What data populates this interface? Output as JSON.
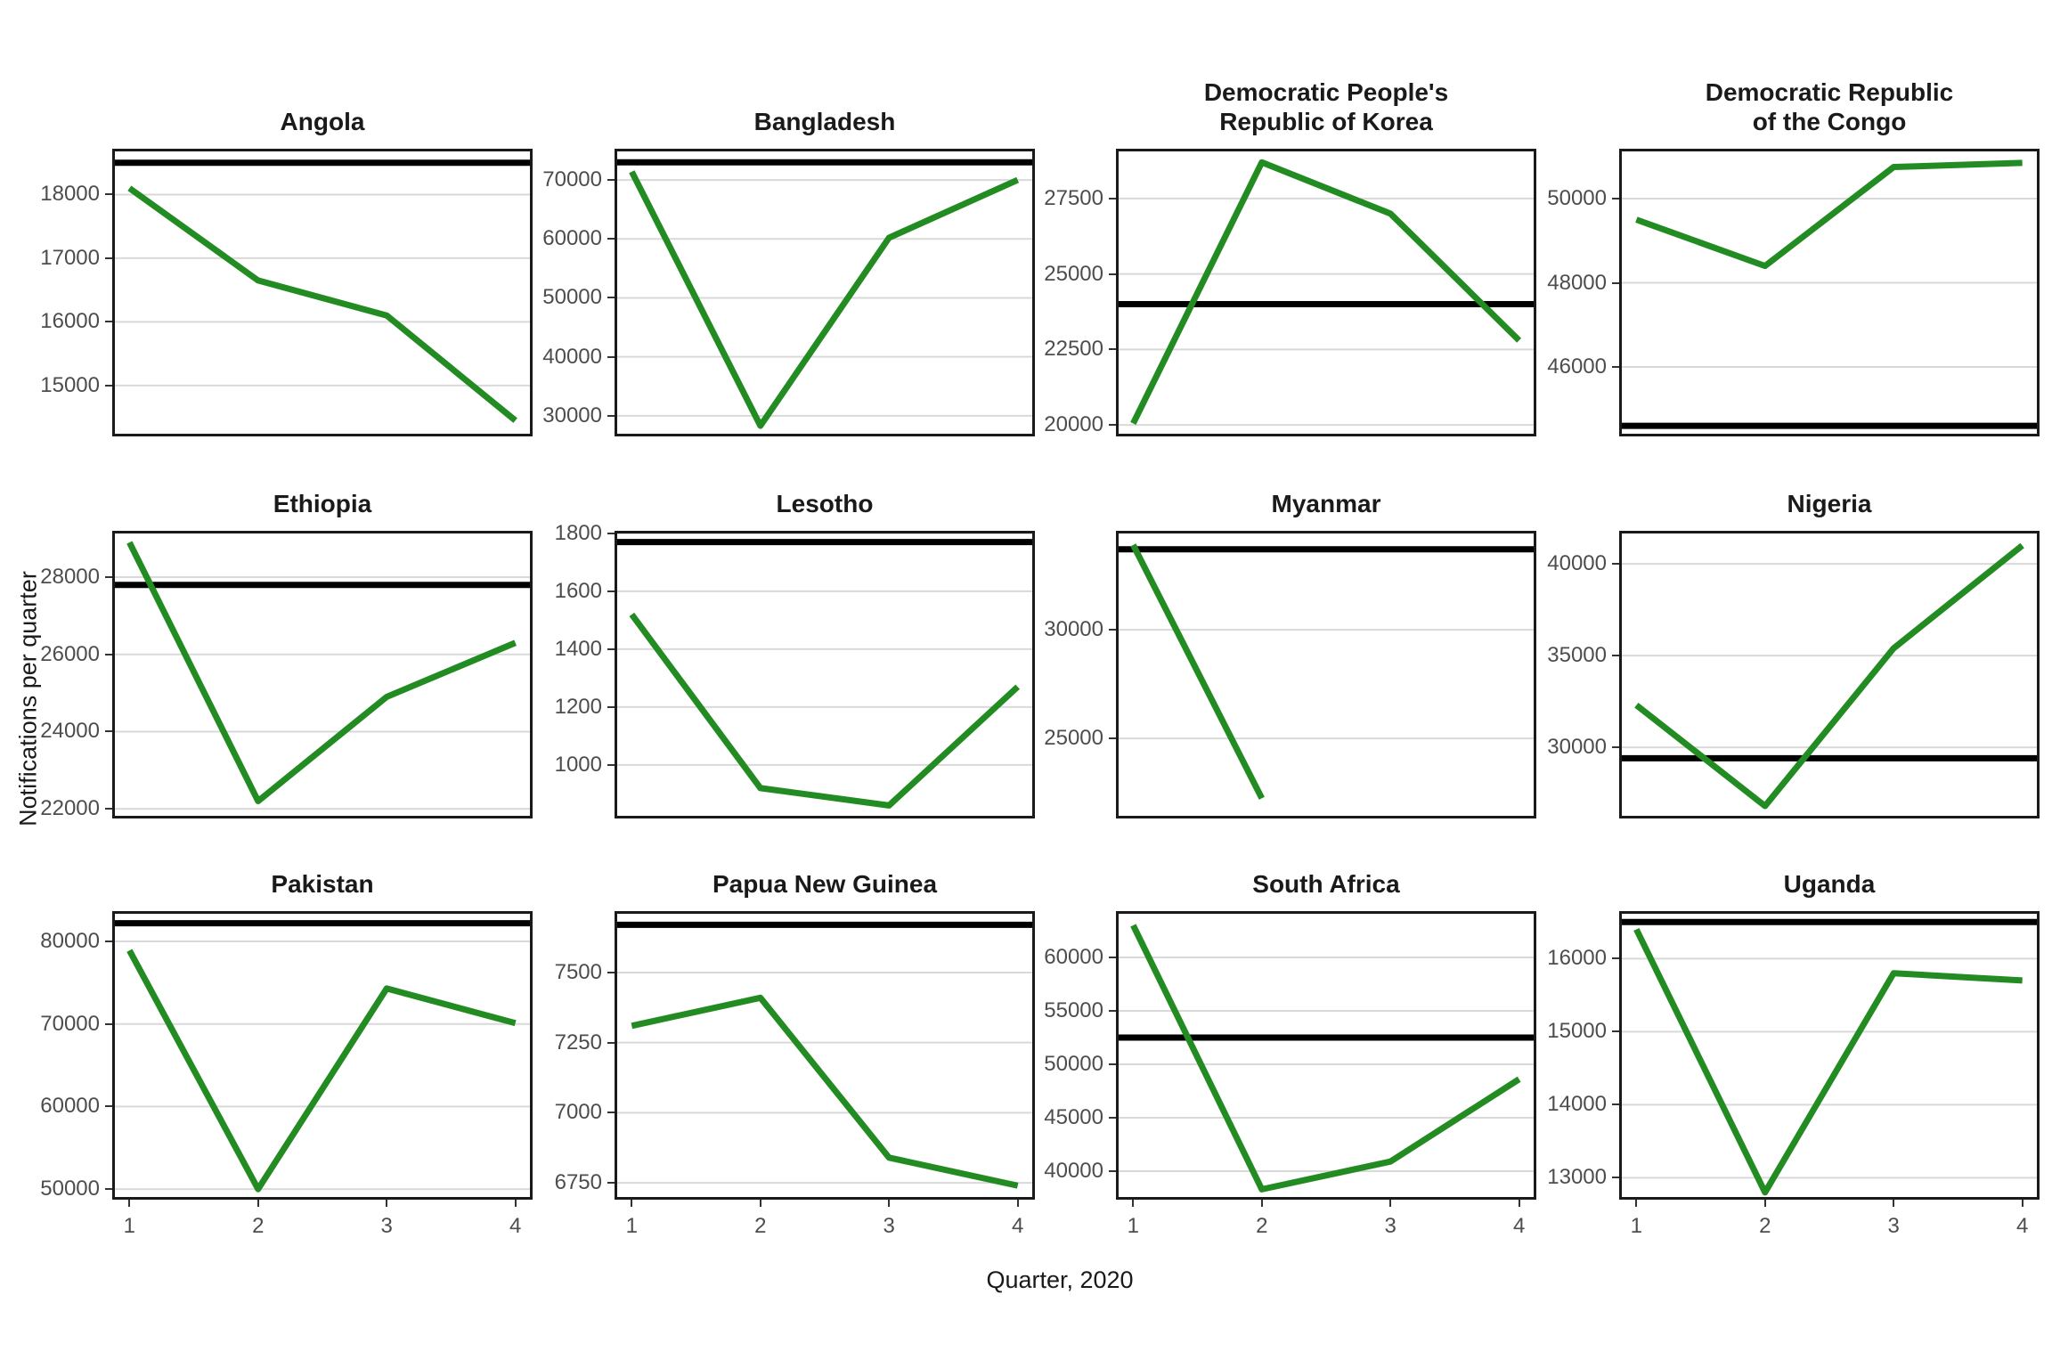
{
  "figure": {
    "xlabel": "Quarter, 2020",
    "ylabel": "Notifications per quarter"
  },
  "colors": {
    "series": "#228B22",
    "reference_line": "#000000",
    "gridline": "#d9d9d9",
    "panel_frame": "#1a1a1a",
    "tick_text": "#4d4d4d",
    "title_text": "#1a1a1a",
    "background": "#ffffff"
  },
  "chart_data": {
    "type": "line",
    "x": [
      1,
      2,
      3,
      4
    ],
    "x_tick_labels": [
      "1",
      "2",
      "3",
      "4"
    ],
    "xlabel": "Quarter, 2020",
    "ylabel": "Notifications per quarter",
    "legend": "none",
    "grid": "horizontal-major-only",
    "series_color": "#228B22",
    "reference_line_color": "#000000",
    "panels": [
      {
        "title": "Angola",
        "title_lines": [
          "Angola"
        ],
        "values": [
          18100,
          16650,
          16100,
          14450
        ],
        "reference_line": 18500,
        "yticks": [
          18000,
          17000,
          16000,
          15000
        ],
        "ylim": [
          14200,
          18720
        ]
      },
      {
        "title": "Bangladesh",
        "title_lines": [
          "Bangladesh"
        ],
        "values": [
          71400,
          28300,
          60200,
          70000
        ],
        "reference_line": 73000,
        "yticks": [
          70000,
          60000,
          50000,
          40000,
          30000
        ],
        "ylim": [
          26500,
          75300
        ]
      },
      {
        "title": "Democratic People's Republic of Korea",
        "title_lines": [
          "Democratic People's",
          "Republic of Korea"
        ],
        "values": [
          20050,
          28700,
          27000,
          22800
        ],
        "reference_line": 24000,
        "yticks": [
          27500,
          25000,
          22500,
          20000
        ],
        "ylim": [
          19620,
          29150
        ]
      },
      {
        "title": "Democratic Republic of the Congo",
        "title_lines": [
          "Democratic Republic",
          "of the Congo"
        ],
        "values": [
          49500,
          48400,
          50750,
          50850
        ],
        "reference_line": 44600,
        "yticks": [
          50000,
          48000,
          46000
        ],
        "ylim": [
          44350,
          51185
        ]
      },
      {
        "title": "Ethiopia",
        "title_lines": [
          "Ethiopia"
        ],
        "values": [
          28900,
          22200,
          24900,
          26300
        ],
        "reference_line": 27800,
        "yticks": [
          28000,
          26000,
          24000,
          22000
        ],
        "ylim": [
          21750,
          29200
        ]
      },
      {
        "title": "Lesotho",
        "title_lines": [
          "Lesotho"
        ],
        "values": [
          1520,
          920,
          860,
          1270
        ],
        "reference_line": 1770,
        "yticks": [
          1800,
          1600,
          1400,
          1200,
          1000
        ],
        "ylim": [
          815,
          1809
        ]
      },
      {
        "title": "Myanmar",
        "title_lines": [
          "Myanmar"
        ],
        "values": [
          33900,
          22250,
          null,
          null
        ],
        "reference_line": 33700,
        "yticks": [
          30000,
          25000
        ],
        "ylim": [
          21320,
          34550
        ]
      },
      {
        "title": "Nigeria",
        "title_lines": [
          "Nigeria"
        ],
        "values": [
          32300,
          26800,
          35400,
          41000
        ],
        "reference_line": 29400,
        "yticks": [
          40000,
          35000,
          30000
        ],
        "ylim": [
          26120,
          41800
        ]
      },
      {
        "title": "Pakistan",
        "title_lines": [
          "Pakistan"
        ],
        "values": [
          78900,
          50000,
          74300,
          70100
        ],
        "reference_line": 82200,
        "yticks": [
          80000,
          70000,
          60000,
          50000
        ],
        "ylim": [
          48720,
          83670
        ]
      },
      {
        "title": "Papua New Guinea",
        "title_lines": [
          "Papua New Guinea"
        ],
        "values": [
          7310,
          7410,
          6840,
          6740
        ],
        "reference_line": 7670,
        "yticks": [
          7500,
          7250,
          7000,
          6750
        ],
        "ylim": [
          6690,
          7719
        ]
      },
      {
        "title": "South Africa",
        "title_lines": [
          "South Africa"
        ],
        "values": [
          63000,
          38300,
          40900,
          48600
        ],
        "reference_line": 52500,
        "yticks": [
          60000,
          55000,
          50000,
          45000,
          40000
        ],
        "ylim": [
          37330,
          64330
        ]
      },
      {
        "title": "Uganda",
        "title_lines": [
          "Uganda"
        ],
        "values": [
          16400,
          12800,
          15800,
          15700
        ],
        "reference_line": 16500,
        "yticks": [
          16000,
          15000,
          14000,
          13000
        ],
        "ylim": [
          12700,
          16650
        ]
      }
    ]
  }
}
